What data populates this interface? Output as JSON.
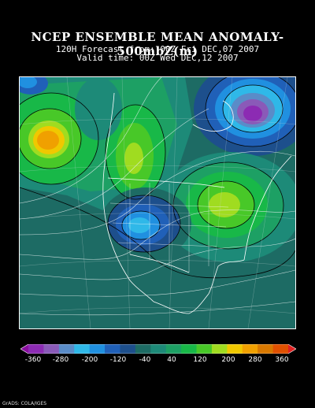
{
  "header": {
    "title": "NCEP ENSEMBLE MEAN ANOMALY- 500mbZ(m)",
    "forecast_line": "120H Forecast from: 00Z Fri DEC,07 2007",
    "valid_line": "Valid time: 00Z Wed DEC,12 2007"
  },
  "colorbar": {
    "labels": [
      "-360",
      "-280",
      "-200",
      "-120",
      "-40",
      "40",
      "120",
      "200",
      "280",
      "360"
    ],
    "colors": [
      "#8a0ea0",
      "#8c2bb3",
      "#8a5ab8",
      "#5a8cc8",
      "#2fb8e8",
      "#2090e0",
      "#2060b8",
      "#1d4f8c",
      "#1d6b64",
      "#1d8a78",
      "#1da064",
      "#18b848",
      "#48c828",
      "#a0dc20",
      "#f0c800",
      "#f0a000",
      "#d87800",
      "#e05000",
      "#e02020"
    ]
  },
  "map": {
    "background_color": "#1d6b64",
    "anomalies": [
      {
        "name": "Pacific high",
        "sign": "positive",
        "peak_color": "#f0a000"
      },
      {
        "name": "Western Canada ridge",
        "sign": "positive",
        "peak_color": "#a0dc20"
      },
      {
        "name": "Hudson Bay low",
        "sign": "negative",
        "peak_color": "#8c2bb3"
      },
      {
        "name": "Western Atlantic high",
        "sign": "positive",
        "peak_color": "#a0dc20"
      },
      {
        "name": "Southwest US low",
        "sign": "negative",
        "peak_color": "#2fb8e8"
      }
    ]
  },
  "credit": "GrADS: COLA/IGES"
}
